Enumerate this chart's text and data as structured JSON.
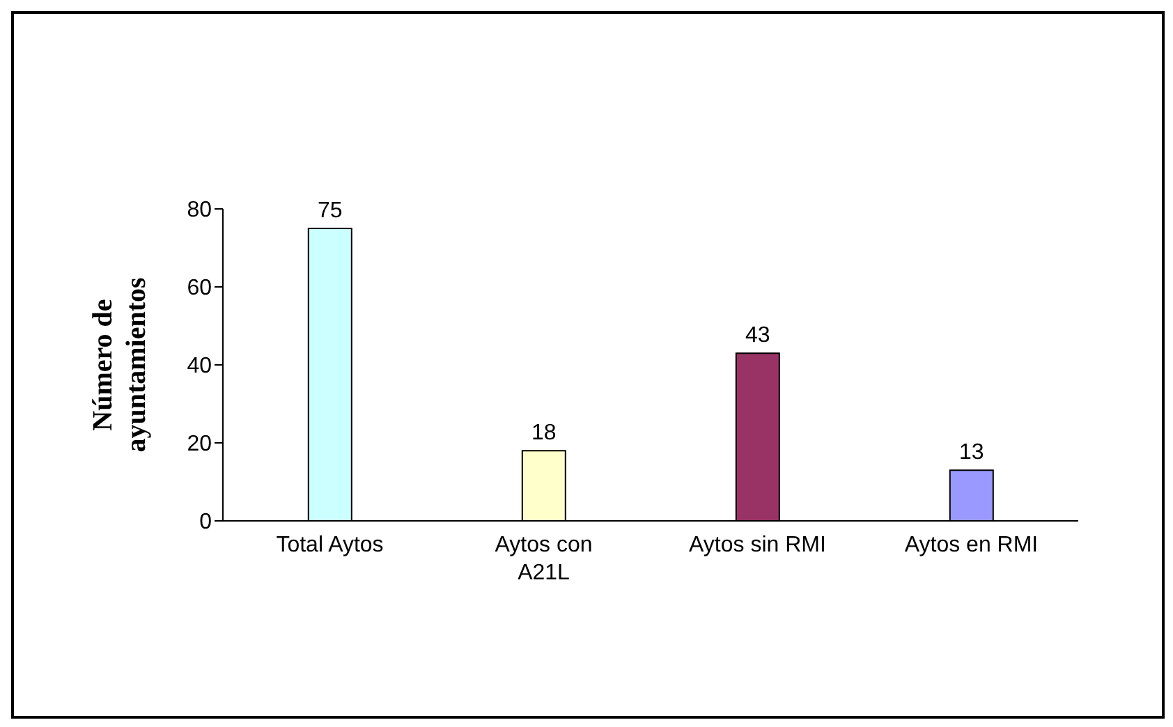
{
  "chart_data": {
    "type": "bar",
    "ylabel": "Número de ayuntamientos",
    "categories": [
      "Total Aytos",
      "Aytos con A21L",
      "Aytos sin RMI",
      "Aytos en RMI"
    ],
    "values": [
      75,
      18,
      43,
      13
    ],
    "colors": [
      "#ccffff",
      "#ffffcc",
      "#993366",
      "#9999ff"
    ],
    "ylim": [
      0,
      80
    ],
    "yticks": [
      0,
      20,
      40,
      60,
      80
    ],
    "grid": false,
    "data_labels": true
  }
}
